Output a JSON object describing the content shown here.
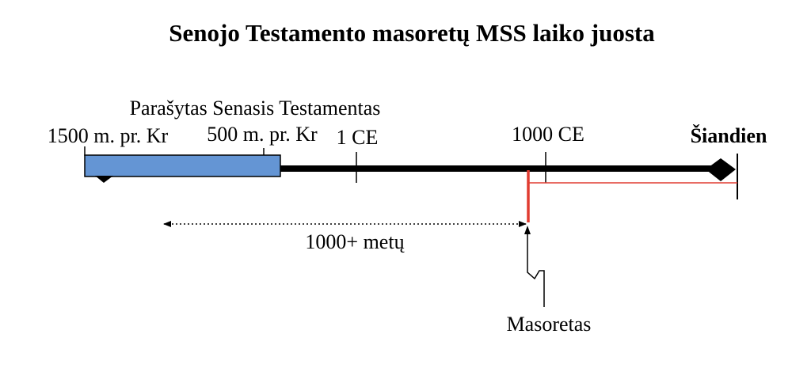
{
  "title": "Senojo Testamento masoretų MSS laiko juosta",
  "period_label": "Parašytas Senasis Testamentas",
  "timeline": {
    "markers": [
      {
        "id": "1500bc",
        "label": "1500 m. pr. Kr"
      },
      {
        "id": "500bc",
        "label": "500 m. pr. Kr"
      },
      {
        "id": "1ce",
        "label": "1 CE"
      },
      {
        "id": "1000ce",
        "label": "1000 CE"
      },
      {
        "id": "today",
        "label": "Šiandien"
      }
    ]
  },
  "gap_label": "1000+ metų",
  "masoretes_label": "Masoretas",
  "colors": {
    "period_bar": "#6495d4",
    "timeline": "#000000",
    "highlight": "#e03c31"
  }
}
